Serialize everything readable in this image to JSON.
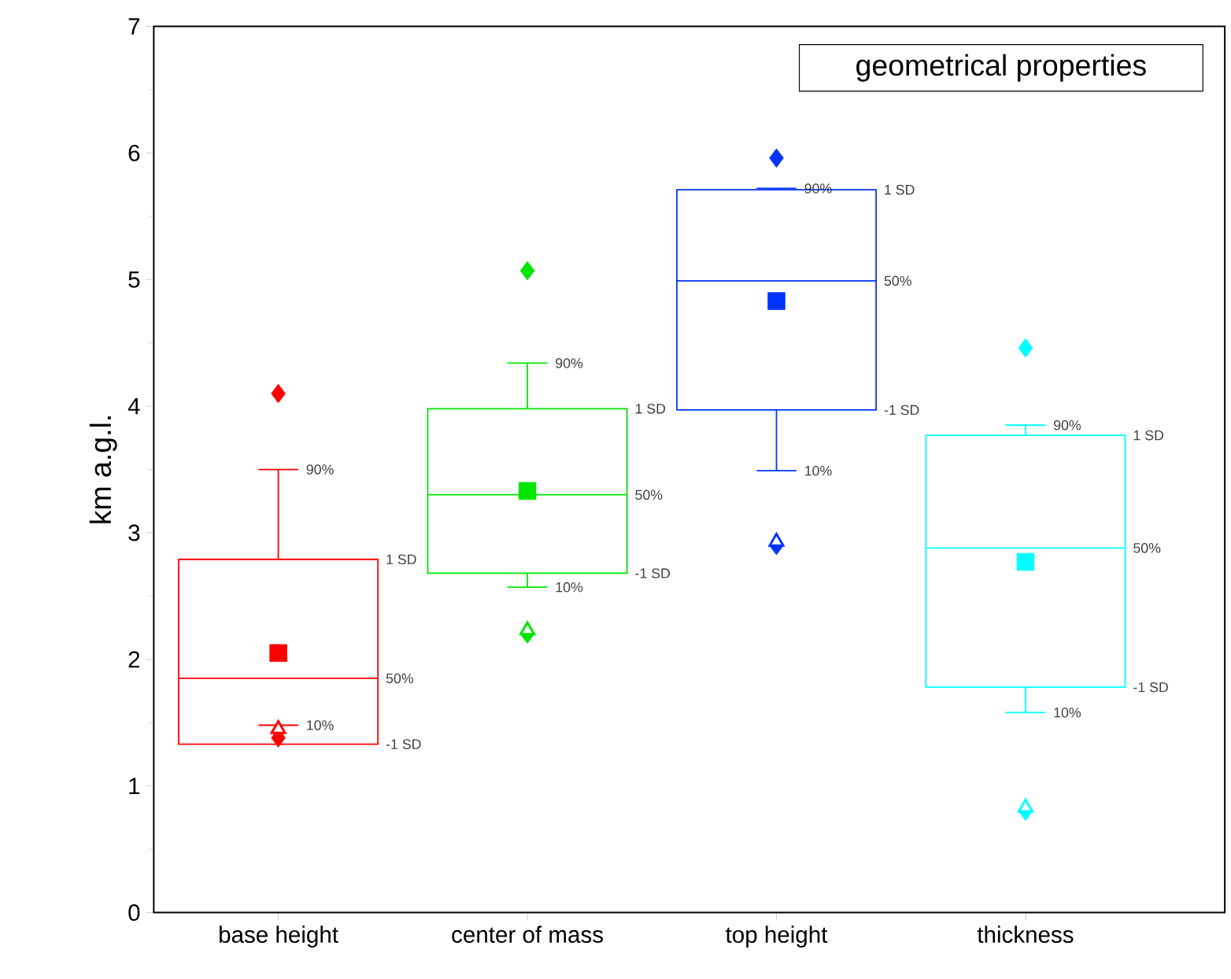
{
  "chart_data": {
    "type": "box",
    "ylabel": "km a.g.l.",
    "legend_title": "geometrical properties",
    "categories": [
      "base height",
      "center of mass",
      "top height",
      "thickness"
    ],
    "colors": [
      "#ff0000",
      "#00e600",
      "#0033ff",
      "#00ffff"
    ],
    "boxes": [
      {
        "low": 1.48,
        "q1": 1.33,
        "median": 1.85,
        "q3": 2.79,
        "high": 3.5,
        "mean": 2.05,
        "outliers": [
          4.1,
          1.38
        ]
      },
      {
        "low": 2.57,
        "q1": 2.68,
        "median": 3.3,
        "q3": 3.98,
        "high": 4.34,
        "mean": 3.33,
        "outliers": [
          5.07,
          2.2
        ]
      },
      {
        "low": 3.49,
        "q1": 3.97,
        "median": 4.99,
        "q3": 5.71,
        "high": 5.72,
        "mean": 4.83,
        "outliers": [
          5.96,
          2.9
        ]
      },
      {
        "low": 1.58,
        "q1": 1.78,
        "median": 2.88,
        "q3": 3.77,
        "high": 3.85,
        "mean": 2.77,
        "outliers": [
          4.46,
          0.8
        ]
      }
    ],
    "series": [
      {
        "type": "scatter",
        "marker": "triangle",
        "x": [
          "base height",
          "center of mass",
          "top height",
          "thickness"
        ],
        "values": [
          1.45,
          2.23,
          2.93,
          0.83
        ],
        "colors": [
          "#ff0000",
          "#00e600",
          "#0033ff",
          "#00ffff"
        ]
      }
    ],
    "ylim": [
      0,
      7
    ],
    "yticks": [
      0,
      1,
      2,
      3,
      4,
      5,
      6,
      7
    ],
    "annotations": [
      "90%",
      "1 SD",
      "50%",
      "10%",
      "-1 SD",
      "90%",
      "1 SD",
      "50%",
      "-1 SD",
      "10%",
      "90%",
      "1 SD",
      "50%",
      "-1 SD",
      "10%",
      "90%",
      "1 SD",
      "50%",
      "-1 SD",
      "10%"
    ]
  }
}
